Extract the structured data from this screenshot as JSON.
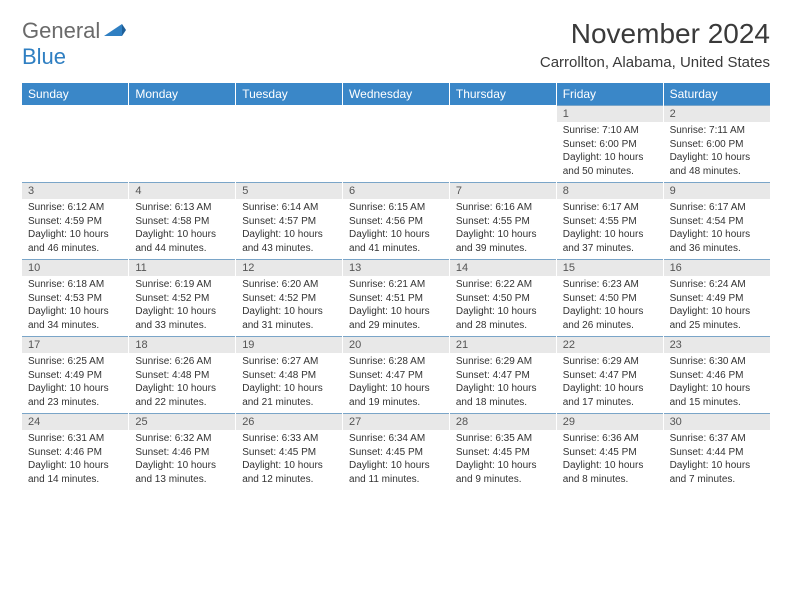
{
  "brand": {
    "word1": "General",
    "word2": "Blue"
  },
  "title": "November 2024",
  "location": "Carrollton, Alabama, United States",
  "colors": {
    "header_bg": "#3a87c8",
    "header_text": "#ffffff",
    "daynum_bg": "#e8e8e8",
    "cell_border_top": "#7aa5c8",
    "body_text": "#333333",
    "brand_gray": "#6a6a6a",
    "brand_blue": "#2f7fc2"
  },
  "weekdays": [
    "Sunday",
    "Monday",
    "Tuesday",
    "Wednesday",
    "Thursday",
    "Friday",
    "Saturday"
  ],
  "weeks": [
    [
      null,
      null,
      null,
      null,
      null,
      {
        "n": "1",
        "sr": "7:10 AM",
        "ss": "6:00 PM",
        "dl": "10 hours and 50 minutes."
      },
      {
        "n": "2",
        "sr": "7:11 AM",
        "ss": "6:00 PM",
        "dl": "10 hours and 48 minutes."
      }
    ],
    [
      {
        "n": "3",
        "sr": "6:12 AM",
        "ss": "4:59 PM",
        "dl": "10 hours and 46 minutes."
      },
      {
        "n": "4",
        "sr": "6:13 AM",
        "ss": "4:58 PM",
        "dl": "10 hours and 44 minutes."
      },
      {
        "n": "5",
        "sr": "6:14 AM",
        "ss": "4:57 PM",
        "dl": "10 hours and 43 minutes."
      },
      {
        "n": "6",
        "sr": "6:15 AM",
        "ss": "4:56 PM",
        "dl": "10 hours and 41 minutes."
      },
      {
        "n": "7",
        "sr": "6:16 AM",
        "ss": "4:55 PM",
        "dl": "10 hours and 39 minutes."
      },
      {
        "n": "8",
        "sr": "6:17 AM",
        "ss": "4:55 PM",
        "dl": "10 hours and 37 minutes."
      },
      {
        "n": "9",
        "sr": "6:17 AM",
        "ss": "4:54 PM",
        "dl": "10 hours and 36 minutes."
      }
    ],
    [
      {
        "n": "10",
        "sr": "6:18 AM",
        "ss": "4:53 PM",
        "dl": "10 hours and 34 minutes."
      },
      {
        "n": "11",
        "sr": "6:19 AM",
        "ss": "4:52 PM",
        "dl": "10 hours and 33 minutes."
      },
      {
        "n": "12",
        "sr": "6:20 AM",
        "ss": "4:52 PM",
        "dl": "10 hours and 31 minutes."
      },
      {
        "n": "13",
        "sr": "6:21 AM",
        "ss": "4:51 PM",
        "dl": "10 hours and 29 minutes."
      },
      {
        "n": "14",
        "sr": "6:22 AM",
        "ss": "4:50 PM",
        "dl": "10 hours and 28 minutes."
      },
      {
        "n": "15",
        "sr": "6:23 AM",
        "ss": "4:50 PM",
        "dl": "10 hours and 26 minutes."
      },
      {
        "n": "16",
        "sr": "6:24 AM",
        "ss": "4:49 PM",
        "dl": "10 hours and 25 minutes."
      }
    ],
    [
      {
        "n": "17",
        "sr": "6:25 AM",
        "ss": "4:49 PM",
        "dl": "10 hours and 23 minutes."
      },
      {
        "n": "18",
        "sr": "6:26 AM",
        "ss": "4:48 PM",
        "dl": "10 hours and 22 minutes."
      },
      {
        "n": "19",
        "sr": "6:27 AM",
        "ss": "4:48 PM",
        "dl": "10 hours and 21 minutes."
      },
      {
        "n": "20",
        "sr": "6:28 AM",
        "ss": "4:47 PM",
        "dl": "10 hours and 19 minutes."
      },
      {
        "n": "21",
        "sr": "6:29 AM",
        "ss": "4:47 PM",
        "dl": "10 hours and 18 minutes."
      },
      {
        "n": "22",
        "sr": "6:29 AM",
        "ss": "4:47 PM",
        "dl": "10 hours and 17 minutes."
      },
      {
        "n": "23",
        "sr": "6:30 AM",
        "ss": "4:46 PM",
        "dl": "10 hours and 15 minutes."
      }
    ],
    [
      {
        "n": "24",
        "sr": "6:31 AM",
        "ss": "4:46 PM",
        "dl": "10 hours and 14 minutes."
      },
      {
        "n": "25",
        "sr": "6:32 AM",
        "ss": "4:46 PM",
        "dl": "10 hours and 13 minutes."
      },
      {
        "n": "26",
        "sr": "6:33 AM",
        "ss": "4:45 PM",
        "dl": "10 hours and 12 minutes."
      },
      {
        "n": "27",
        "sr": "6:34 AM",
        "ss": "4:45 PM",
        "dl": "10 hours and 11 minutes."
      },
      {
        "n": "28",
        "sr": "6:35 AM",
        "ss": "4:45 PM",
        "dl": "10 hours and 9 minutes."
      },
      {
        "n": "29",
        "sr": "6:36 AM",
        "ss": "4:45 PM",
        "dl": "10 hours and 8 minutes."
      },
      {
        "n": "30",
        "sr": "6:37 AM",
        "ss": "4:44 PM",
        "dl": "10 hours and 7 minutes."
      }
    ]
  ],
  "labels": {
    "sunrise": "Sunrise: ",
    "sunset": "Sunset: ",
    "daylight": "Daylight: "
  }
}
